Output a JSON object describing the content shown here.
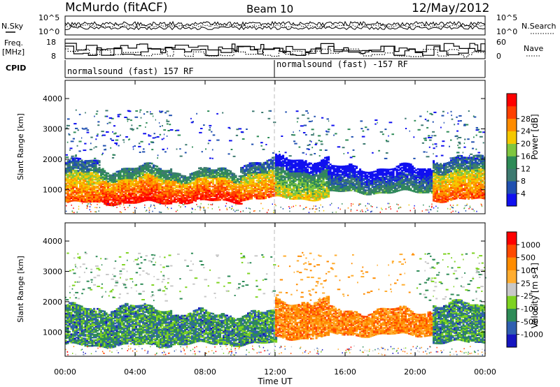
{
  "header": {
    "station": "McMurdo (fitACF)",
    "beam": "Beam 10",
    "date": "12/May/2012"
  },
  "panels": {
    "sky_label": "N.Sky",
    "sky_ticks": [
      "10^5",
      "10^0"
    ],
    "search_label": "N.Search",
    "search_ticks": [
      "10^5",
      "10^0"
    ],
    "freq_label_1": "Freq.",
    "freq_label_2": "[MHz]",
    "freq_ticks": [
      "18",
      "8"
    ],
    "nave_label": "Nave",
    "nave_ticks": [
      "60",
      "0"
    ],
    "cpid_label": "CPID",
    "cpid_1": "normalsound (fast) 157 RF",
    "cpid_2": "normalsound (fast) -157 RF"
  },
  "colors": {
    "power": [
      "#1010f0",
      "#2050b0",
      "#3d7a70",
      "#2e8b57",
      "#7fc63f",
      "#f5c800",
      "#ff8c00",
      "#ff4000",
      "#ff0000"
    ],
    "velocity": [
      "#ff0000",
      "#ff4a00",
      "#ff8c00",
      "#ffad30",
      "#c8c8c8",
      "#7ed321",
      "#2e8b57",
      "#2f5fb0",
      "#1515c0"
    ]
  },
  "chart_data": [
    {
      "type": "heatmap",
      "xlabel": "Time UT",
      "ylabel": "Slant Range [km]",
      "x_ticks": [
        "00:00",
        "04:00",
        "08:00",
        "12:00",
        "16:00",
        "20:00",
        "00:00"
      ],
      "y_ticks": [
        "1000",
        "2000",
        "3000",
        "4000"
      ],
      "xlim": [
        0,
        24
      ],
      "ylim": [
        200,
        4600
      ],
      "colorbar_label": "Power [dB]",
      "colorbar_ticks": [
        "4",
        "8",
        "12",
        "16",
        "20",
        "24",
        "28"
      ],
      "bands": [
        {
          "from": 0,
          "to": 2,
          "low": 550,
          "high": 1900,
          "level": 7
        },
        {
          "from": 2,
          "to": 6,
          "low": 550,
          "high": 1700,
          "level": 8
        },
        {
          "from": 6,
          "to": 10,
          "low": 600,
          "high": 1600,
          "level": 8
        },
        {
          "from": 10,
          "to": 12,
          "low": 700,
          "high": 1900,
          "level": 7
        },
        {
          "from": 12,
          "to": 15,
          "low": 700,
          "high": 2000,
          "level": 5
        },
        {
          "from": 15,
          "to": 21,
          "low": 900,
          "high": 1700,
          "level": 3
        },
        {
          "from": 21,
          "to": 24,
          "low": 650,
          "high": 2000,
          "level": 7
        }
      ]
    },
    {
      "type": "heatmap",
      "xlabel": "Time UT",
      "ylabel": "Slant Range [km]",
      "x_ticks": [
        "00:00",
        "04:00",
        "08:00",
        "12:00",
        "16:00",
        "20:00",
        "00:00"
      ],
      "y_ticks": [
        "1000",
        "2000",
        "3000",
        "4000"
      ],
      "xlim": [
        0,
        24
      ],
      "ylim": [
        200,
        4600
      ],
      "colorbar_label": "Velocity [m s-1]",
      "colorbar_ticks": [
        "1000",
        "500",
        "100",
        "25",
        "-25",
        "-100",
        "-500",
        "-1000"
      ],
      "bands": [
        {
          "from": 0,
          "to": 6,
          "low": 550,
          "high": 1800,
          "level": 6
        },
        {
          "from": 6,
          "to": 12,
          "low": 600,
          "high": 1600,
          "level": 6
        },
        {
          "from": 12,
          "to": 15,
          "low": 800,
          "high": 2000,
          "level": 2
        },
        {
          "from": 15,
          "to": 21,
          "low": 900,
          "high": 1700,
          "level": 2
        },
        {
          "from": 21,
          "to": 24,
          "low": 650,
          "high": 1900,
          "level": 6
        }
      ]
    }
  ]
}
